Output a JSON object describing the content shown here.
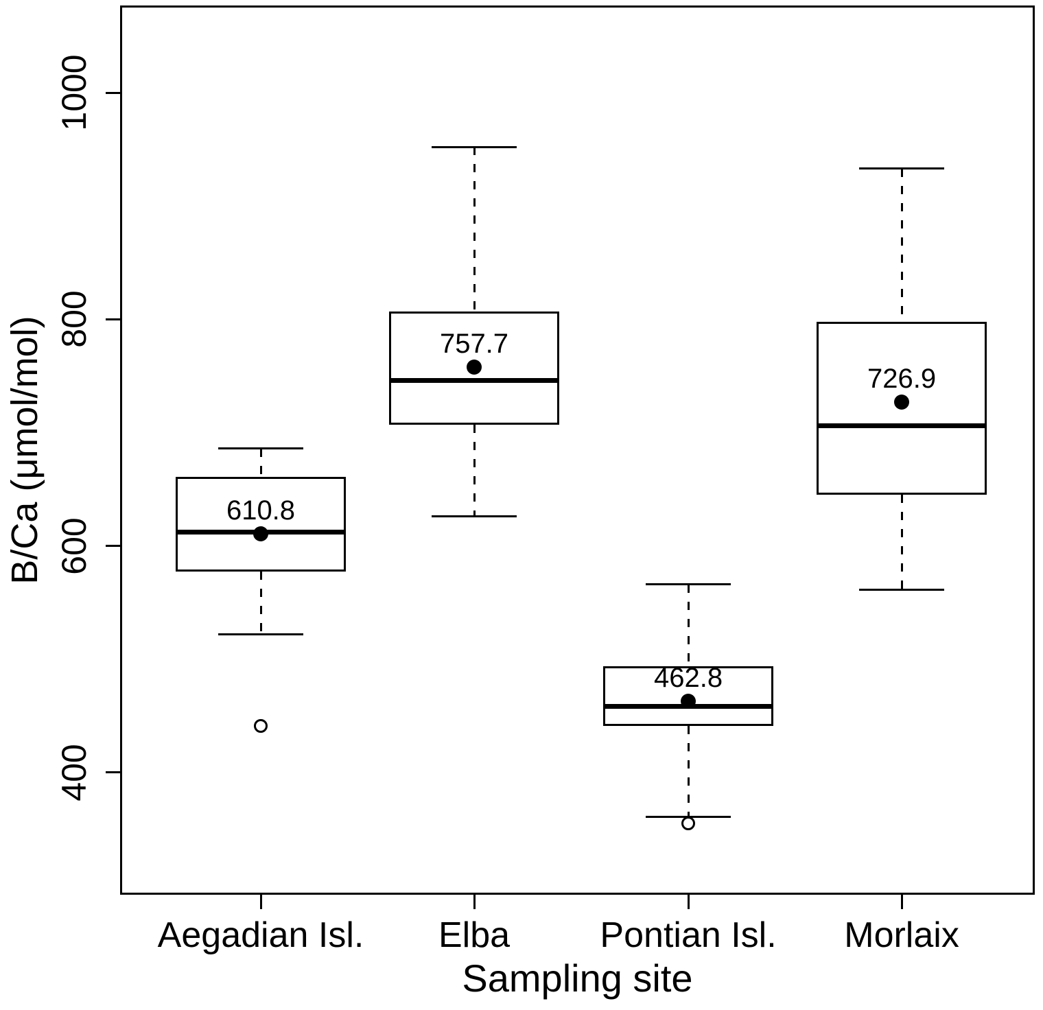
{
  "chart_data": {
    "type": "boxplot",
    "title": "",
    "xlabel": "Sampling site",
    "ylabel": "B/Ca (μmol/mol)",
    "ylim": [
      292,
      1077
    ],
    "yticks": [
      400,
      600,
      800,
      1000
    ],
    "ytick_labels": [
      "400",
      "600",
      "800",
      "1000"
    ],
    "grid": false,
    "legend": null,
    "categories": [
      "Aegadian Isl.",
      "Elba",
      "Pontian Isl.",
      "Morlaix"
    ],
    "series": [
      {
        "name": "Aegadian Isl.",
        "whisker_low": 522,
        "q1": 577,
        "median": 612,
        "q3": 661,
        "whisker_high": 686,
        "mean": 610.8,
        "mean_label": "610.8",
        "outliers": [
          441
        ]
      },
      {
        "name": "Elba",
        "whisker_low": 626,
        "q1": 707,
        "median": 746,
        "q3": 807,
        "whisker_high": 952,
        "mean": 757.7,
        "mean_label": "757.7",
        "outliers": []
      },
      {
        "name": "Pontian Isl.",
        "whisker_low": 361,
        "q1": 441,
        "median": 458,
        "q3": 494,
        "whisker_high": 566,
        "mean": 462.8,
        "mean_label": "462.8",
        "outliers": [
          355
        ]
      },
      {
        "name": "Morlaix",
        "whisker_low": 561,
        "q1": 645,
        "median": 706,
        "q3": 798,
        "whisker_high": 933,
        "mean": 726.9,
        "mean_label": "726.9",
        "outliers": []
      }
    ],
    "colors": {
      "line": "#000000",
      "background": "#ffffff"
    }
  }
}
